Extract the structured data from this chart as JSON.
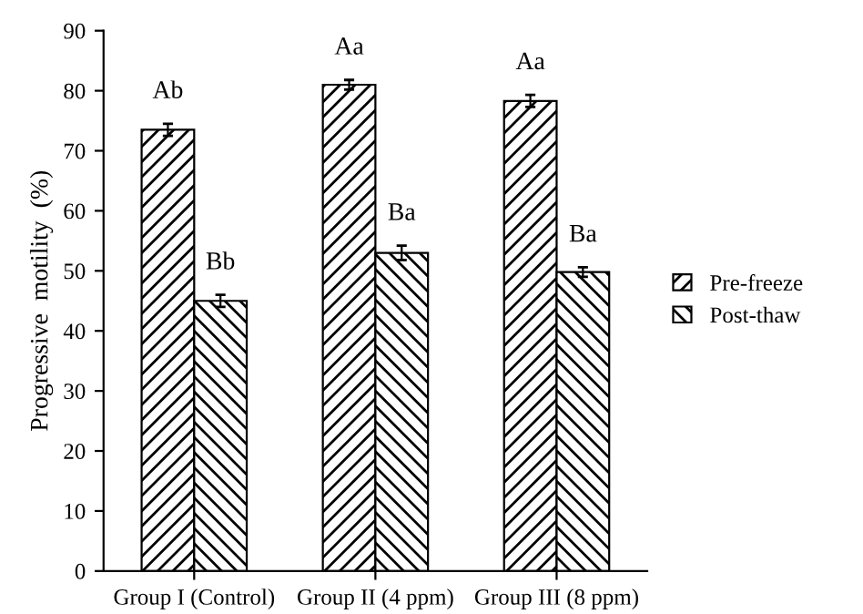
{
  "chart_data": {
    "type": "bar",
    "ylabel": "Progressive  motility  (%)",
    "categories": [
      "Group I (Control)",
      "Group II (4 ppm)",
      "Group III (8 ppm)"
    ],
    "series": [
      {
        "name": "Pre-freeze",
        "color": "#000000",
        "values": [
          73.5,
          81,
          78.3
        ],
        "errors": [
          1,
          0.8,
          1
        ],
        "value_labels": [
          "Ab",
          "Aa",
          "Aa"
        ]
      },
      {
        "name": "Post-thaw",
        "color": "#000000",
        "values": [
          45,
          53,
          49.8
        ],
        "errors": [
          1,
          1.2,
          0.8
        ],
        "value_labels": [
          "Bb",
          "Ba",
          "Ba"
        ]
      }
    ],
    "ylim": [
      0,
      90
    ],
    "yticks": [
      0,
      10,
      20,
      30,
      40,
      50,
      60,
      70,
      80,
      90
    ],
    "grid": false,
    "legend": "right"
  }
}
